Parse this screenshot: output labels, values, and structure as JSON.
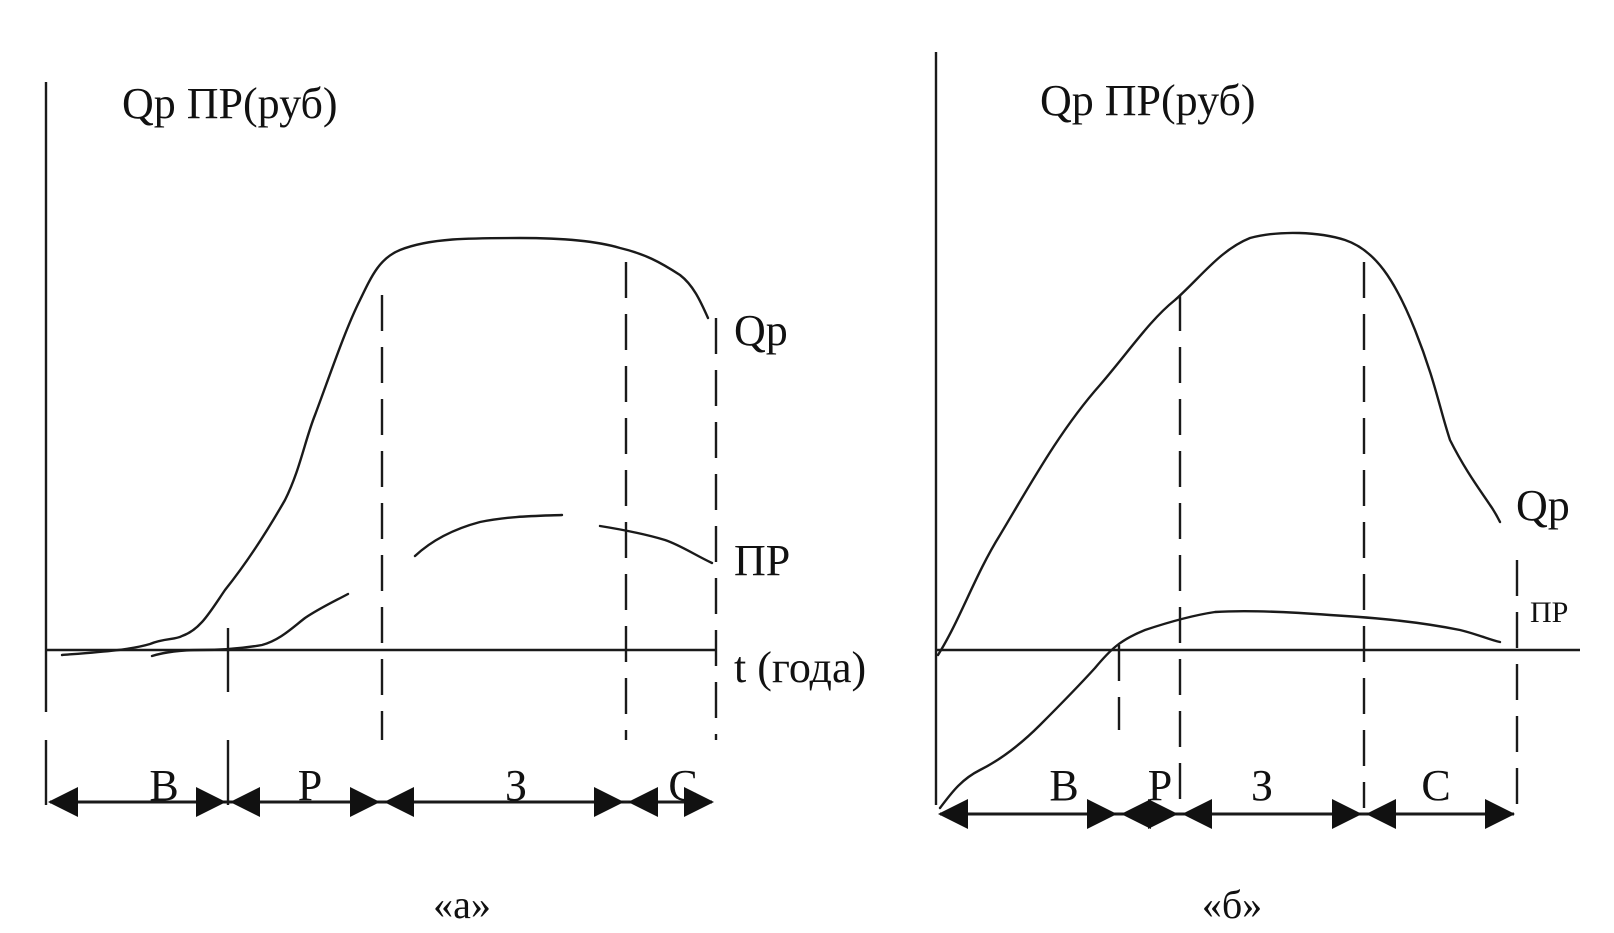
{
  "panels": [
    {
      "caption": "«а»",
      "y_axis_label": "Qp ПР(руб)",
      "x_axis_label": "t (года)",
      "curve_labels": {
        "qp": "Qp",
        "pr": "ПР"
      },
      "phases": [
        "В",
        "Р",
        "З",
        "С"
      ]
    },
    {
      "caption": "«б»",
      "y_axis_label": "Qp ПР(руб)",
      "x_axis_label": "",
      "curve_labels": {
        "qp": "Qp",
        "pr": "ПР"
      },
      "phases": [
        "В",
        "Р",
        "З",
        "С"
      ]
    }
  ],
  "colors": {
    "ink": "#1a1a1a",
    "background": "#ffffff"
  }
}
